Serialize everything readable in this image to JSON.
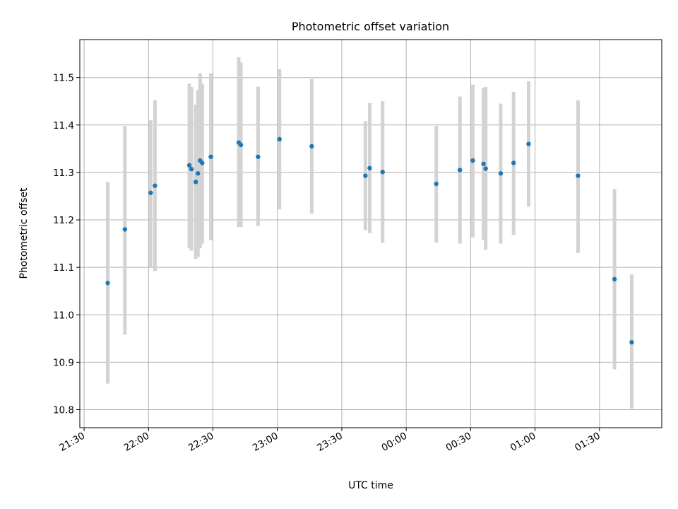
{
  "chart_data": {
    "type": "scatter",
    "title": "Photometric offset variation",
    "xlabel": "UTC time",
    "ylabel": "Photometric offset",
    "grid": true,
    "x_unit": "UTC time (HH:MM)",
    "xlim": [
      "21:28",
      "01:59"
    ],
    "ylim": [
      10.762,
      11.58
    ],
    "xticks": [
      "21:30",
      "22:00",
      "22:30",
      "23:00",
      "23:30",
      "00:00",
      "00:30",
      "01:00",
      "01:30"
    ],
    "yticks": [
      10.8,
      10.9,
      11.0,
      11.1,
      11.2,
      11.3,
      11.4,
      11.5
    ],
    "ytick_labels": [
      "10.8",
      "10.9",
      "11.0",
      "11.1",
      "11.2",
      "11.3",
      "11.4",
      "11.5"
    ],
    "colors": {
      "point": "#1f77b4",
      "errorbar": "#d3d3d3",
      "grid": "#b0b0b0"
    },
    "points": [
      {
        "x": "21:41",
        "y": 11.067,
        "ylow": 10.855,
        "yhigh": 11.28
      },
      {
        "x": "21:49",
        "y": 11.18,
        "ylow": 10.958,
        "yhigh": 11.398
      },
      {
        "x": "22:01",
        "y": 11.257,
        "ylow": 11.1,
        "yhigh": 11.41
      },
      {
        "x": "22:03",
        "y": 11.272,
        "ylow": 11.092,
        "yhigh": 11.452
      },
      {
        "x": "22:19",
        "y": 11.315,
        "ylow": 11.14,
        "yhigh": 11.487
      },
      {
        "x": "22:20",
        "y": 11.307,
        "ylow": 11.135,
        "yhigh": 11.48
      },
      {
        "x": "22:22",
        "y": 11.28,
        "ylow": 11.118,
        "yhigh": 11.443
      },
      {
        "x": "22:23",
        "y": 11.298,
        "ylow": 11.122,
        "yhigh": 11.474
      },
      {
        "x": "22:24",
        "y": 11.325,
        "ylow": 11.14,
        "yhigh": 11.509
      },
      {
        "x": "22:25",
        "y": 11.32,
        "ylow": 11.15,
        "yhigh": 11.487
      },
      {
        "x": "22:29",
        "y": 11.333,
        "ylow": 11.157,
        "yhigh": 11.509
      },
      {
        "x": "22:42",
        "y": 11.363,
        "ylow": 11.185,
        "yhigh": 11.543
      },
      {
        "x": "22:43",
        "y": 11.358,
        "ylow": 11.185,
        "yhigh": 11.532
      },
      {
        "x": "22:51",
        "y": 11.333,
        "ylow": 11.187,
        "yhigh": 11.481
      },
      {
        "x": "23:01",
        "y": 11.37,
        "ylow": 11.222,
        "yhigh": 11.518
      },
      {
        "x": "23:16",
        "y": 11.355,
        "ylow": 11.213,
        "yhigh": 11.497
      },
      {
        "x": "23:41",
        "y": 11.293,
        "ylow": 11.178,
        "yhigh": 11.408
      },
      {
        "x": "23:43",
        "y": 11.309,
        "ylow": 11.172,
        "yhigh": 11.446
      },
      {
        "x": "23:49",
        "y": 11.301,
        "ylow": 11.152,
        "yhigh": 11.45
      },
      {
        "x": "00:14",
        "y": 11.276,
        "ylow": 11.152,
        "yhigh": 11.398
      },
      {
        "x": "00:25",
        "y": 11.305,
        "ylow": 11.15,
        "yhigh": 11.46
      },
      {
        "x": "00:31",
        "y": 11.325,
        "ylow": 11.163,
        "yhigh": 11.485
      },
      {
        "x": "00:36",
        "y": 11.318,
        "ylow": 11.158,
        "yhigh": 11.478
      },
      {
        "x": "00:37",
        "y": 11.308,
        "ylow": 11.137,
        "yhigh": 11.48
      },
      {
        "x": "00:44",
        "y": 11.298,
        "ylow": 11.15,
        "yhigh": 11.445
      },
      {
        "x": "00:50",
        "y": 11.32,
        "ylow": 11.168,
        "yhigh": 11.47
      },
      {
        "x": "00:57",
        "y": 11.36,
        "ylow": 11.228,
        "yhigh": 11.492
      },
      {
        "x": "01:20",
        "y": 11.293,
        "ylow": 11.13,
        "yhigh": 11.452
      },
      {
        "x": "01:37",
        "y": 11.075,
        "ylow": 10.885,
        "yhigh": 11.265
      },
      {
        "x": "01:45",
        "y": 10.942,
        "ylow": 10.802,
        "yhigh": 11.085
      }
    ]
  }
}
